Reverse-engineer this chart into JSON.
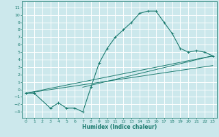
{
  "title": "",
  "xlabel": "Humidex (Indice chaleur)",
  "bg_color": "#cce8ec",
  "grid_color": "#ffffff",
  "line_color": "#1a7a6e",
  "xlim": [
    -0.5,
    23.5
  ],
  "ylim": [
    -3.8,
    11.8
  ],
  "xticks": [
    0,
    1,
    2,
    3,
    4,
    5,
    6,
    7,
    8,
    9,
    10,
    11,
    12,
    13,
    14,
    15,
    16,
    17,
    18,
    19,
    20,
    21,
    22,
    23
  ],
  "yticks": [
    -3,
    -2,
    -1,
    0,
    1,
    2,
    3,
    4,
    5,
    6,
    7,
    8,
    9,
    10,
    11
  ],
  "curve1_x": [
    0,
    1,
    3,
    4,
    5,
    6,
    7,
    8,
    9,
    10,
    11,
    12,
    13,
    14,
    15,
    16,
    17,
    18,
    19,
    20,
    21,
    22,
    23
  ],
  "curve1_y": [
    -0.5,
    -0.5,
    -2.5,
    -1.8,
    -2.5,
    -2.5,
    -3.0,
    0.3,
    3.5,
    5.5,
    7.0,
    8.0,
    9.0,
    10.2,
    10.5,
    10.5,
    9.0,
    7.5,
    5.5,
    5.0,
    5.2,
    5.0,
    4.5
  ],
  "line2_x": [
    0,
    23
  ],
  "line2_y": [
    -0.5,
    4.5
  ],
  "line3_x": [
    0,
    23
  ],
  "line3_y": [
    -0.5,
    3.2
  ],
  "line4_x": [
    7,
    23
  ],
  "line4_y": [
    0.3,
    4.5
  ]
}
